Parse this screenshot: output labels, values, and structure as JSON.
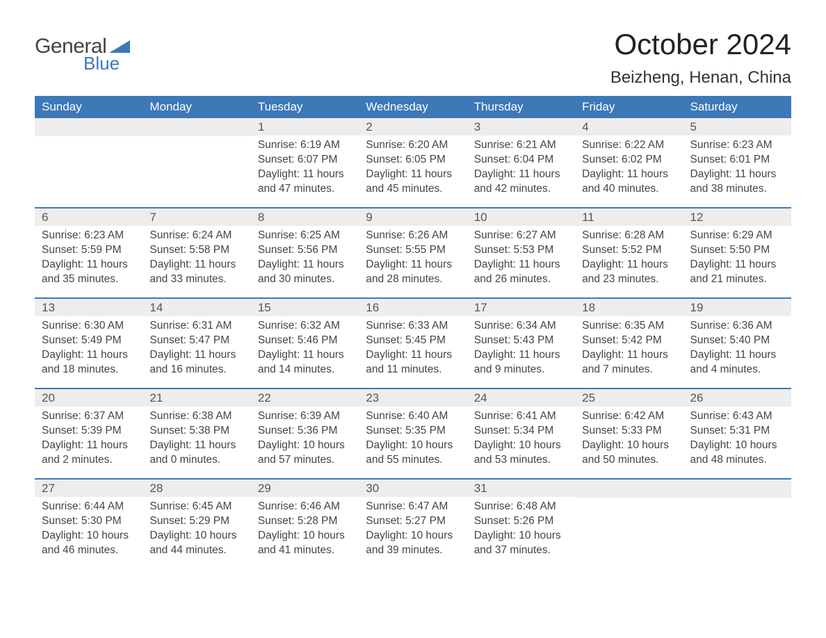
{
  "logo": {
    "text_general": "General",
    "text_blue": "Blue",
    "triangle_color": "#3d78b7"
  },
  "header": {
    "month_title": "October 2024",
    "location": "Beizheng, Henan, China"
  },
  "colors": {
    "header_bg": "#3d78b7",
    "header_text": "#ffffff",
    "daynum_bg": "#ededed",
    "week_divider": "#3d78b7",
    "body_text": "#444444",
    "title_text": "#222222"
  },
  "weekdays": [
    "Sunday",
    "Monday",
    "Tuesday",
    "Wednesday",
    "Thursday",
    "Friday",
    "Saturday"
  ],
  "weeks": [
    [
      {
        "day": "",
        "sunrise": "",
        "sunset": "",
        "daylight1": "",
        "daylight2": ""
      },
      {
        "day": "",
        "sunrise": "",
        "sunset": "",
        "daylight1": "",
        "daylight2": ""
      },
      {
        "day": "1",
        "sunrise": "Sunrise: 6:19 AM",
        "sunset": "Sunset: 6:07 PM",
        "daylight1": "Daylight: 11 hours",
        "daylight2": "and 47 minutes."
      },
      {
        "day": "2",
        "sunrise": "Sunrise: 6:20 AM",
        "sunset": "Sunset: 6:05 PM",
        "daylight1": "Daylight: 11 hours",
        "daylight2": "and 45 minutes."
      },
      {
        "day": "3",
        "sunrise": "Sunrise: 6:21 AM",
        "sunset": "Sunset: 6:04 PM",
        "daylight1": "Daylight: 11 hours",
        "daylight2": "and 42 minutes."
      },
      {
        "day": "4",
        "sunrise": "Sunrise: 6:22 AM",
        "sunset": "Sunset: 6:02 PM",
        "daylight1": "Daylight: 11 hours",
        "daylight2": "and 40 minutes."
      },
      {
        "day": "5",
        "sunrise": "Sunrise: 6:23 AM",
        "sunset": "Sunset: 6:01 PM",
        "daylight1": "Daylight: 11 hours",
        "daylight2": "and 38 minutes."
      }
    ],
    [
      {
        "day": "6",
        "sunrise": "Sunrise: 6:23 AM",
        "sunset": "Sunset: 5:59 PM",
        "daylight1": "Daylight: 11 hours",
        "daylight2": "and 35 minutes."
      },
      {
        "day": "7",
        "sunrise": "Sunrise: 6:24 AM",
        "sunset": "Sunset: 5:58 PM",
        "daylight1": "Daylight: 11 hours",
        "daylight2": "and 33 minutes."
      },
      {
        "day": "8",
        "sunrise": "Sunrise: 6:25 AM",
        "sunset": "Sunset: 5:56 PM",
        "daylight1": "Daylight: 11 hours",
        "daylight2": "and 30 minutes."
      },
      {
        "day": "9",
        "sunrise": "Sunrise: 6:26 AM",
        "sunset": "Sunset: 5:55 PM",
        "daylight1": "Daylight: 11 hours",
        "daylight2": "and 28 minutes."
      },
      {
        "day": "10",
        "sunrise": "Sunrise: 6:27 AM",
        "sunset": "Sunset: 5:53 PM",
        "daylight1": "Daylight: 11 hours",
        "daylight2": "and 26 minutes."
      },
      {
        "day": "11",
        "sunrise": "Sunrise: 6:28 AM",
        "sunset": "Sunset: 5:52 PM",
        "daylight1": "Daylight: 11 hours",
        "daylight2": "and 23 minutes."
      },
      {
        "day": "12",
        "sunrise": "Sunrise: 6:29 AM",
        "sunset": "Sunset: 5:50 PM",
        "daylight1": "Daylight: 11 hours",
        "daylight2": "and 21 minutes."
      }
    ],
    [
      {
        "day": "13",
        "sunrise": "Sunrise: 6:30 AM",
        "sunset": "Sunset: 5:49 PM",
        "daylight1": "Daylight: 11 hours",
        "daylight2": "and 18 minutes."
      },
      {
        "day": "14",
        "sunrise": "Sunrise: 6:31 AM",
        "sunset": "Sunset: 5:47 PM",
        "daylight1": "Daylight: 11 hours",
        "daylight2": "and 16 minutes."
      },
      {
        "day": "15",
        "sunrise": "Sunrise: 6:32 AM",
        "sunset": "Sunset: 5:46 PM",
        "daylight1": "Daylight: 11 hours",
        "daylight2": "and 14 minutes."
      },
      {
        "day": "16",
        "sunrise": "Sunrise: 6:33 AM",
        "sunset": "Sunset: 5:45 PM",
        "daylight1": "Daylight: 11 hours",
        "daylight2": "and 11 minutes."
      },
      {
        "day": "17",
        "sunrise": "Sunrise: 6:34 AM",
        "sunset": "Sunset: 5:43 PM",
        "daylight1": "Daylight: 11 hours",
        "daylight2": "and 9 minutes."
      },
      {
        "day": "18",
        "sunrise": "Sunrise: 6:35 AM",
        "sunset": "Sunset: 5:42 PM",
        "daylight1": "Daylight: 11 hours",
        "daylight2": "and 7 minutes."
      },
      {
        "day": "19",
        "sunrise": "Sunrise: 6:36 AM",
        "sunset": "Sunset: 5:40 PM",
        "daylight1": "Daylight: 11 hours",
        "daylight2": "and 4 minutes."
      }
    ],
    [
      {
        "day": "20",
        "sunrise": "Sunrise: 6:37 AM",
        "sunset": "Sunset: 5:39 PM",
        "daylight1": "Daylight: 11 hours",
        "daylight2": "and 2 minutes."
      },
      {
        "day": "21",
        "sunrise": "Sunrise: 6:38 AM",
        "sunset": "Sunset: 5:38 PM",
        "daylight1": "Daylight: 11 hours",
        "daylight2": "and 0 minutes."
      },
      {
        "day": "22",
        "sunrise": "Sunrise: 6:39 AM",
        "sunset": "Sunset: 5:36 PM",
        "daylight1": "Daylight: 10 hours",
        "daylight2": "and 57 minutes."
      },
      {
        "day": "23",
        "sunrise": "Sunrise: 6:40 AM",
        "sunset": "Sunset: 5:35 PM",
        "daylight1": "Daylight: 10 hours",
        "daylight2": "and 55 minutes."
      },
      {
        "day": "24",
        "sunrise": "Sunrise: 6:41 AM",
        "sunset": "Sunset: 5:34 PM",
        "daylight1": "Daylight: 10 hours",
        "daylight2": "and 53 minutes."
      },
      {
        "day": "25",
        "sunrise": "Sunrise: 6:42 AM",
        "sunset": "Sunset: 5:33 PM",
        "daylight1": "Daylight: 10 hours",
        "daylight2": "and 50 minutes."
      },
      {
        "day": "26",
        "sunrise": "Sunrise: 6:43 AM",
        "sunset": "Sunset: 5:31 PM",
        "daylight1": "Daylight: 10 hours",
        "daylight2": "and 48 minutes."
      }
    ],
    [
      {
        "day": "27",
        "sunrise": "Sunrise: 6:44 AM",
        "sunset": "Sunset: 5:30 PM",
        "daylight1": "Daylight: 10 hours",
        "daylight2": "and 46 minutes."
      },
      {
        "day": "28",
        "sunrise": "Sunrise: 6:45 AM",
        "sunset": "Sunset: 5:29 PM",
        "daylight1": "Daylight: 10 hours",
        "daylight2": "and 44 minutes."
      },
      {
        "day": "29",
        "sunrise": "Sunrise: 6:46 AM",
        "sunset": "Sunset: 5:28 PM",
        "daylight1": "Daylight: 10 hours",
        "daylight2": "and 41 minutes."
      },
      {
        "day": "30",
        "sunrise": "Sunrise: 6:47 AM",
        "sunset": "Sunset: 5:27 PM",
        "daylight1": "Daylight: 10 hours",
        "daylight2": "and 39 minutes."
      },
      {
        "day": "31",
        "sunrise": "Sunrise: 6:48 AM",
        "sunset": "Sunset: 5:26 PM",
        "daylight1": "Daylight: 10 hours",
        "daylight2": "and 37 minutes."
      },
      {
        "day": "",
        "sunrise": "",
        "sunset": "",
        "daylight1": "",
        "daylight2": ""
      },
      {
        "day": "",
        "sunrise": "",
        "sunset": "",
        "daylight1": "",
        "daylight2": ""
      }
    ]
  ]
}
